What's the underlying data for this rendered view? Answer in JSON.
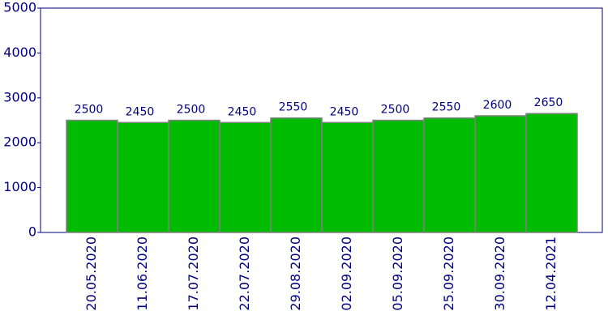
{
  "chart_data": {
    "type": "bar",
    "categories": [
      "20.05.2020",
      "11.06.2020",
      "17.07.2020",
      "22.07.2020",
      "29.08.2020",
      "02.09.2020",
      "05.09.2020",
      "25.09.2020",
      "30.09.2020",
      "12.04.2021"
    ],
    "values": [
      2500,
      2450,
      2500,
      2450,
      2550,
      2450,
      2500,
      2550,
      2600,
      2650
    ],
    "color": "#00bb00",
    "ylim": [
      0,
      5000
    ],
    "yticks": [
      0,
      1000,
      2000,
      3000,
      4000,
      5000
    ],
    "grid": false
  }
}
